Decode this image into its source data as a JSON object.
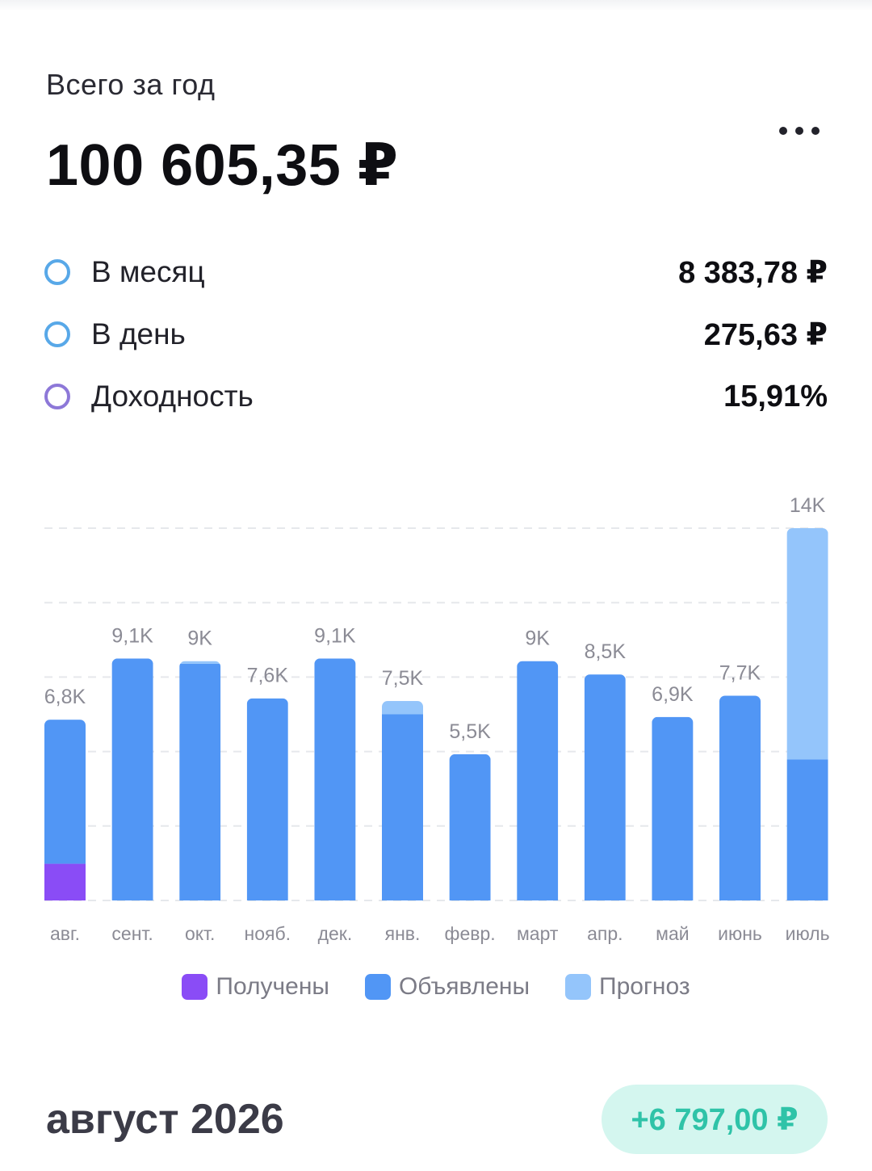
{
  "summary": {
    "subtitle": "Всего за год",
    "total": "100 605,35 ₽"
  },
  "stats": [
    {
      "label": "В месяц",
      "value": "8 383,78 ₽",
      "ring_color": "#58a8e8"
    },
    {
      "label": "В день",
      "value": "275,63 ₽",
      "ring_color": "#58a8e8"
    },
    {
      "label": "Доходность",
      "value": "15,91%",
      "ring_color": "#8d78d8"
    }
  ],
  "colors": {
    "received": "#8a4cf6",
    "declared": "#5196f5",
    "forecast": "#94c5fb",
    "accent_green": "#2fc3a8"
  },
  "legend": {
    "received": "Получены",
    "declared": "Объявлены",
    "forecast": "Прогноз"
  },
  "chart_data": {
    "type": "bar",
    "stacked": true,
    "categories": [
      "авг.",
      "сент.",
      "окт.",
      "нояб.",
      "дек.",
      "янв.",
      "февр.",
      "март",
      "апр.",
      "май",
      "июнь",
      "июль"
    ],
    "series": [
      {
        "name": "Получены",
        "values": [
          1380,
          0,
          0,
          0,
          0,
          0,
          0,
          0,
          0,
          0,
          0,
          0
        ]
      },
      {
        "name": "Объявлены",
        "values": [
          5420,
          9100,
          8900,
          7600,
          9100,
          7000,
          5500,
          9000,
          8500,
          6900,
          7700,
          5300
        ]
      },
      {
        "name": "Прогноз",
        "values": [
          0,
          0,
          100,
          0,
          0,
          500,
          0,
          0,
          0,
          0,
          0,
          8700
        ]
      }
    ],
    "total_labels": [
      "6,8K",
      "9,1K",
      "9K",
      "7,6K",
      "9,1K",
      "7,5K",
      "5,5K",
      "9K",
      "8,5K",
      "6,9K",
      "7,7K",
      "14K"
    ],
    "ylim": [
      0,
      14000
    ],
    "grid": true,
    "legend_position": "bottom"
  },
  "footer": {
    "month": "август 2026",
    "delta": "+6 797,00 ₽"
  }
}
